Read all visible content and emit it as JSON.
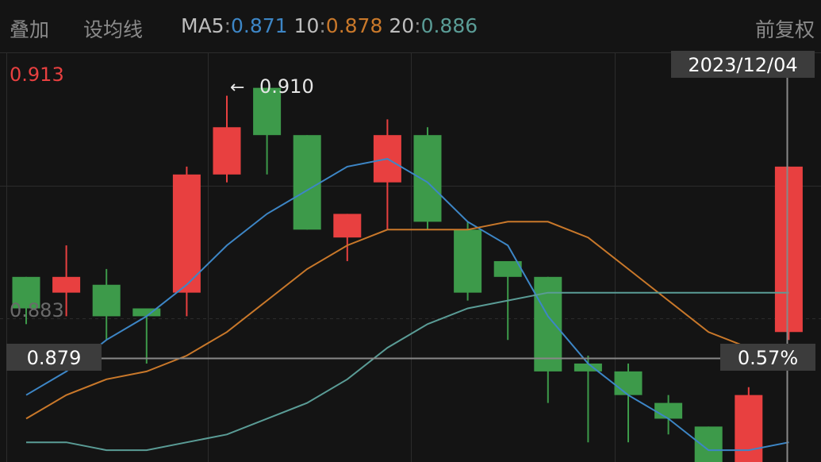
{
  "toolbar": {
    "overlay_label": "叠加",
    "ma_settings_label": "设均线",
    "adjust_label": "前复权"
  },
  "ma_legend": {
    "ma5_label": "MA5",
    "ma5_value": "0.871",
    "ma10_label": "10",
    "ma10_value": "0.878",
    "ma20_label": "20",
    "ma20_value": "0.886",
    "separator": ":"
  },
  "colors": {
    "background": "#141414",
    "up": "#e84040",
    "down": "#3d9a4a",
    "ma5": "#3d86c6",
    "ma10": "#c9782a",
    "ma20": "#5a9c96",
    "grid": "#2c2c2c",
    "crosshair": "#888888"
  },
  "chart_data": {
    "type": "candlestick",
    "y_axis": {
      "max_label": "0.913",
      "mid_label": "0.883",
      "range": [
        0.8635,
        0.9155
      ]
    },
    "crosshair": {
      "price_label": "0.879",
      "percent_label": "0.57%",
      "date_label": "2023/12/04"
    },
    "annotation": {
      "arrow": "←",
      "text": "0.910"
    },
    "candles": [
      {
        "open": 0.887,
        "close": 0.883,
        "high": 0.887,
        "low": 0.881
      },
      {
        "open": 0.885,
        "close": 0.887,
        "high": 0.891,
        "low": 0.882
      },
      {
        "open": 0.886,
        "close": 0.882,
        "high": 0.888,
        "low": 0.879
      },
      {
        "open": 0.883,
        "close": 0.882,
        "high": 0.883,
        "low": 0.876
      },
      {
        "open": 0.885,
        "close": 0.9,
        "high": 0.901,
        "low": 0.882
      },
      {
        "open": 0.9,
        "close": 0.906,
        "high": 0.91,
        "low": 0.899
      },
      {
        "open": 0.911,
        "close": 0.905,
        "high": 0.911,
        "low": 0.9
      },
      {
        "open": 0.905,
        "close": 0.893,
        "high": 0.905,
        "low": 0.893
      },
      {
        "open": 0.892,
        "close": 0.895,
        "high": 0.895,
        "low": 0.889
      },
      {
        "open": 0.899,
        "close": 0.905,
        "high": 0.907,
        "low": 0.893
      },
      {
        "open": 0.905,
        "close": 0.894,
        "high": 0.906,
        "low": 0.893
      },
      {
        "open": 0.893,
        "close": 0.885,
        "high": 0.894,
        "low": 0.884
      },
      {
        "open": 0.889,
        "close": 0.887,
        "high": 0.889,
        "low": 0.879
      },
      {
        "open": 0.887,
        "close": 0.875,
        "high": 0.887,
        "low": 0.871
      },
      {
        "open": 0.876,
        "close": 0.875,
        "high": 0.877,
        "low": 0.866
      },
      {
        "open": 0.875,
        "close": 0.872,
        "high": 0.876,
        "low": 0.866
      },
      {
        "open": 0.871,
        "close": 0.869,
        "high": 0.872,
        "low": 0.867
      },
      {
        "open": 0.868,
        "close": 0.862,
        "high": 0.868,
        "low": 0.86
      },
      {
        "open": 0.862,
        "close": 0.872,
        "high": 0.873,
        "low": 0.86
      },
      {
        "open": 0.88,
        "close": 0.901,
        "high": 0.901,
        "low": 0.879
      }
    ],
    "ma5": [
      0.872,
      0.875,
      0.879,
      0.882,
      0.886,
      0.891,
      0.895,
      0.898,
      0.901,
      0.902,
      0.899,
      0.894,
      0.891,
      0.882,
      0.876,
      0.872,
      0.869,
      0.865,
      0.865,
      0.866
    ],
    "ma10": [
      0.869,
      0.872,
      0.874,
      0.875,
      0.877,
      0.88,
      0.884,
      0.888,
      0.891,
      0.893,
      0.893,
      0.893,
      0.894,
      0.894,
      0.892,
      0.888,
      0.884,
      0.88,
      0.878,
      0.876
    ],
    "ma20": [
      0.866,
      0.866,
      0.865,
      0.865,
      0.866,
      0.867,
      0.869,
      0.871,
      0.874,
      0.878,
      0.881,
      0.883,
      0.884,
      0.885,
      0.885,
      0.885,
      0.885,
      0.885,
      0.885,
      0.885
    ]
  }
}
